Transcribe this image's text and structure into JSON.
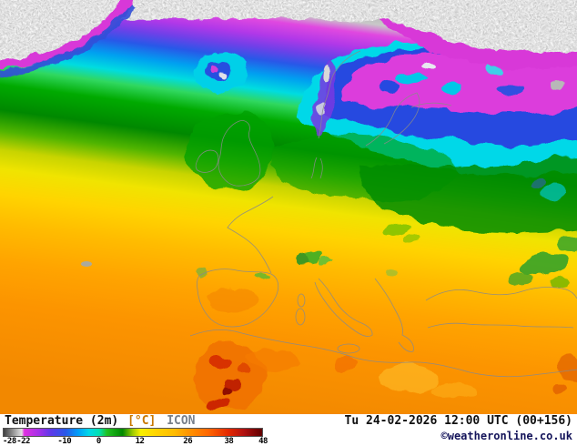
{
  "map": {
    "alt": "Temperature (2m) colour-filled forecast map of Europe, the North Atlantic, Scandinavia and North Africa"
  },
  "footer": {
    "parameter": "Temperature (2m)",
    "unit": "[°C]",
    "model": "ICON",
    "timestamp": "Tu 24-02-2026 12:00 UTC (00+156)",
    "copyright": "©weatheronline.co.uk",
    "scale": {
      "ticks": [
        "-28",
        "-22",
        "-10",
        "0",
        "12",
        "26",
        "38",
        "48"
      ],
      "gradient_stops": [
        {
          "pct": 0,
          "color": "#404040"
        },
        {
          "pct": 7,
          "color": "#e0e0e0"
        },
        {
          "pct": 8,
          "color": "#e030e0"
        },
        {
          "pct": 14,
          "color": "#a030e8"
        },
        {
          "pct": 18,
          "color": "#6038e8"
        },
        {
          "pct": 24,
          "color": "#2858e8"
        },
        {
          "pct": 29,
          "color": "#00a0f8"
        },
        {
          "pct": 33,
          "color": "#00d8e8"
        },
        {
          "pct": 37,
          "color": "#00e0b0"
        },
        {
          "pct": 40,
          "color": "#20c020"
        },
        {
          "pct": 46,
          "color": "#008800"
        },
        {
          "pct": 50,
          "color": "#a0cc00"
        },
        {
          "pct": 53,
          "color": "#f8f000"
        },
        {
          "pct": 59,
          "color": "#ffd400"
        },
        {
          "pct": 66,
          "color": "#ffbc00"
        },
        {
          "pct": 71,
          "color": "#ff9800"
        },
        {
          "pct": 79,
          "color": "#ff6800"
        },
        {
          "pct": 87,
          "color": "#e42800"
        },
        {
          "pct": 93,
          "color": "#b01010"
        },
        {
          "pct": 100,
          "color": "#600000"
        }
      ]
    }
  }
}
